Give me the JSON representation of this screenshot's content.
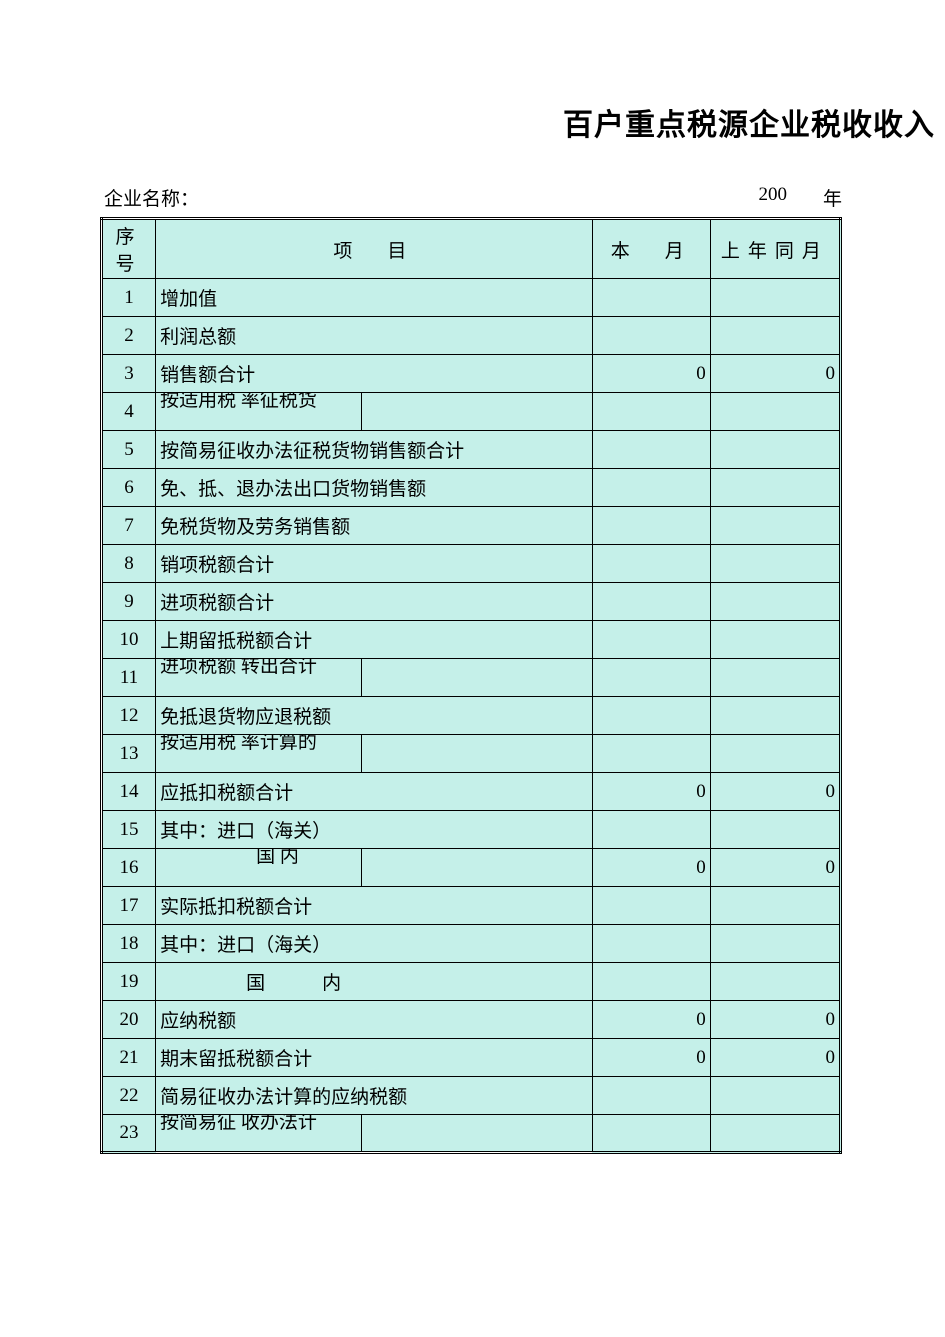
{
  "title": "百户重点税源企业税收收入",
  "meta": {
    "company_label": "企业名称：",
    "year_prefix": "200",
    "year_suffix": "年"
  },
  "headers": {
    "seq": "序号",
    "item": "项　目",
    "month": "本　月",
    "prev": "上年同月"
  },
  "rows": [
    {
      "n": "1",
      "label": "增加值",
      "kind": "plain",
      "m": "",
      "p": ""
    },
    {
      "n": "2",
      "label": "利润总额",
      "kind": "plain",
      "m": "",
      "p": ""
    },
    {
      "n": "3",
      "label": "销售额合计",
      "kind": "plain",
      "m": "0",
      "p": "0"
    },
    {
      "n": "4",
      "label": "按适用税\n率征税货",
      "kind": "split",
      "m": "",
      "p": ""
    },
    {
      "n": "5",
      "label": "按简易征收办法征税货物销售额合计",
      "kind": "plain",
      "m": "",
      "p": ""
    },
    {
      "n": "6",
      "label": "免、抵、退办法出口货物销售额",
      "kind": "plain",
      "m": "",
      "p": ""
    },
    {
      "n": "7",
      "label": "免税货物及劳务销售额",
      "kind": "plain",
      "m": "",
      "p": ""
    },
    {
      "n": "8",
      "label": "销项税额合计",
      "kind": "plain",
      "m": "",
      "p": ""
    },
    {
      "n": "9",
      "label": "进项税额合计",
      "kind": "plain",
      "m": "",
      "p": ""
    },
    {
      "n": "10",
      "label": "上期留抵税额合计",
      "kind": "plain",
      "m": "",
      "p": ""
    },
    {
      "n": "11",
      "label": "进项税额\n转出合计",
      "kind": "split",
      "m": "",
      "p": ""
    },
    {
      "n": "12",
      "label": "免抵退货物应退税额",
      "kind": "plain",
      "m": "",
      "p": ""
    },
    {
      "n": "13",
      "label": "按适用税\n率计算的",
      "kind": "split",
      "m": "",
      "p": ""
    },
    {
      "n": "14",
      "label": "应抵扣税额合计",
      "kind": "plain",
      "m": "0",
      "p": "0"
    },
    {
      "n": "15",
      "label": "其中：进口（海关）",
      "kind": "plain",
      "m": "",
      "p": ""
    },
    {
      "n": "16",
      "label": "　　国\n内",
      "kind": "split-top",
      "m": "0",
      "p": "0"
    },
    {
      "n": "17",
      "label": "实际抵扣税额合计",
      "kind": "plain",
      "m": "",
      "p": ""
    },
    {
      "n": "18",
      "label": "其中：进口（海关）",
      "kind": "plain",
      "m": "",
      "p": ""
    },
    {
      "n": "19",
      "label": "国　　　内",
      "kind": "center",
      "m": "",
      "p": ""
    },
    {
      "n": "20",
      "label": "应纳税额",
      "kind": "plain",
      "m": "0",
      "p": "0"
    },
    {
      "n": "21",
      "label": "期末留抵税额合计",
      "kind": "plain",
      "m": "0",
      "p": "0"
    },
    {
      "n": "22",
      "label": "简易征收办法计算的应纳税额",
      "kind": "plain",
      "m": "",
      "p": ""
    },
    {
      "n": "23",
      "label": "按简易征\n收办法计",
      "kind": "split",
      "m": "",
      "p": ""
    }
  ],
  "style": {
    "cell_bg": "#c5f0e9",
    "page_bg": "#ffffff",
    "border_color": "#000000",
    "title_fontsize": 30,
    "body_fontsize": 19
  }
}
